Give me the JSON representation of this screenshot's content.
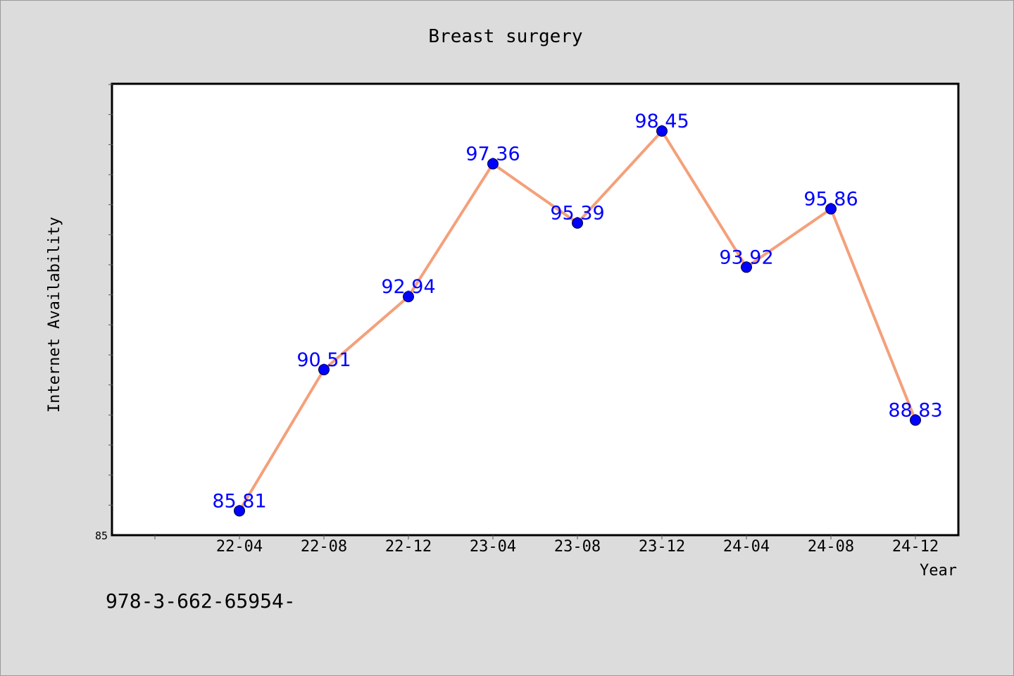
{
  "chart_data": {
    "type": "line",
    "title": "Breast surgery",
    "xlabel": "Year",
    "ylabel": "Internet Availability",
    "categories": [
      "22-04",
      "22-08",
      "22-12",
      "23-04",
      "23-08",
      "23-12",
      "24-04",
      "24-08",
      "24-12"
    ],
    "series": [
      {
        "values": [
          85.81,
          90.51,
          92.94,
          97.36,
          95.39,
          98.45,
          93.92,
          95.86,
          88.83
        ],
        "labels": [
          "85.81",
          "90.51",
          "92.94",
          "97.36",
          "95.39",
          "98.45",
          "93.92",
          "95.86",
          "88.83"
        ]
      }
    ],
    "ylim": [
      85,
      100
    ],
    "y_tick_labels": [
      "85"
    ],
    "grid": false,
    "line_color": "#f4a07a",
    "marker_color": "#0000ff",
    "label_color": "#0000ff"
  },
  "footer": {
    "code": "978-3-662-65954-"
  }
}
